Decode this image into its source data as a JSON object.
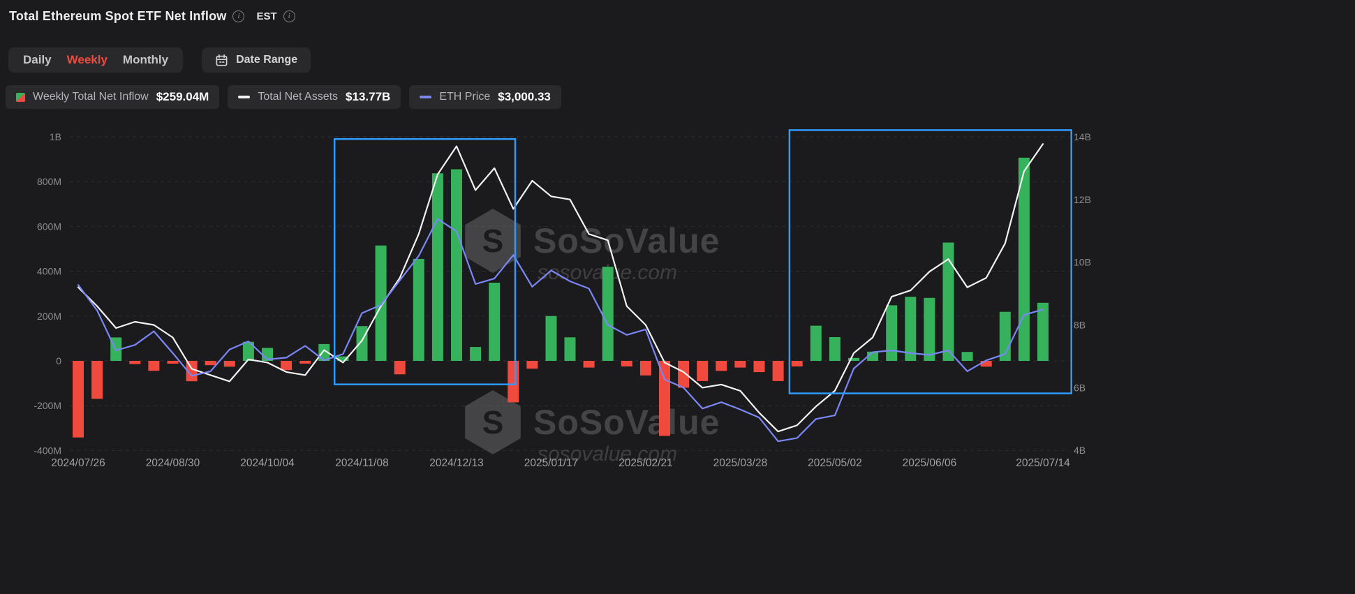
{
  "header": {
    "title": "Total Ethereum Spot ETF Net Inflow",
    "timezone_label": "EST"
  },
  "controls": {
    "tabs": [
      "Daily",
      "Weekly",
      "Monthly"
    ],
    "active_tab": "Weekly",
    "date_range_label": "Date Range"
  },
  "legend": {
    "inflow": {
      "label": "Weekly Total Net Inflow",
      "value": "$259.04M"
    },
    "net_assets": {
      "label": "Total Net Assets",
      "value": "$13.77B"
    },
    "eth_price": {
      "label": "ETH Price",
      "value": "$3,000.33"
    }
  },
  "watermark": {
    "brand": "SoSoValue",
    "site": "sosovalue.com"
  },
  "colors": {
    "background": "#1b1b1d",
    "bar_positive": "#35b25b",
    "bar_negative": "#f04a3e",
    "assets_line": "#f2f2f2",
    "eth_line": "#7b87f7",
    "highlight_box": "#2e9bff",
    "active_tab": "#ee4b40",
    "grid": "#2d2d31",
    "axis_text": "#8e8e92"
  },
  "chart_data": {
    "type": "bar+line",
    "title": "Total Ethereum Spot ETF Net Inflow",
    "grid": "dashed-horizontal",
    "x_axis": {
      "num_points": 52,
      "labels": [
        "2024/07/26",
        "2024/08/30",
        "2024/10/04",
        "2024/11/08",
        "2024/12/13",
        "2025/01/17",
        "2025/02/21",
        "2025/03/28",
        "2025/05/02",
        "2025/06/06",
        "2025/07/14"
      ],
      "label_indices": [
        0,
        5,
        10,
        15,
        20,
        25,
        30,
        35,
        40,
        45,
        51
      ]
    },
    "left_axis": {
      "unit": "USD",
      "ticks_m": [
        1000,
        800,
        600,
        400,
        200,
        0,
        -200,
        -400
      ],
      "labels": [
        "1B",
        "800M",
        "600M",
        "400M",
        "200M",
        "0",
        "-200M",
        "-400M"
      ]
    },
    "right_axis": {
      "unit": "USD",
      "ticks_b": [
        14,
        12,
        10,
        8,
        6,
        4
      ],
      "labels": [
        "14B",
        "12B",
        "10B",
        "8B",
        "6B",
        "4B"
      ]
    },
    "series": [
      {
        "name": "Weekly Total Net Inflow",
        "type": "bar",
        "axis": "left",
        "unit": "USD_million",
        "values": [
          -341.8,
          -169.4,
          104.8,
          -14.2,
          -44.5,
          -12.4,
          -91.1,
          -19.3,
          -26.2,
          85,
          58,
          -41,
          -12,
          75,
          20,
          155,
          515,
          -60,
          455,
          837,
          855,
          62,
          349,
          -185,
          -35,
          200,
          105,
          -30,
          420,
          -25,
          -65,
          -335,
          -120,
          -90,
          -45,
          -30,
          -50,
          -90,
          -25,
          157,
          106,
          13,
          41,
          248,
          286,
          281,
          528,
          40,
          -26,
          219,
          907,
          259.04
        ]
      },
      {
        "name": "Total Net Assets",
        "type": "line",
        "axis": "right",
        "unit": "USD_billion",
        "values": [
          9.2,
          8.6,
          7.9,
          8.1,
          8.0,
          7.6,
          6.6,
          6.4,
          6.2,
          6.9,
          6.8,
          6.5,
          6.4,
          7.2,
          6.8,
          7.5,
          8.6,
          9.5,
          10.9,
          12.8,
          13.7,
          12.3,
          13.0,
          11.7,
          12.6,
          12.1,
          12.0,
          10.9,
          10.7,
          8.6,
          8.0,
          6.8,
          6.5,
          6.0,
          6.1,
          5.9,
          5.2,
          4.6,
          4.8,
          5.4,
          5.9,
          7.1,
          7.6,
          8.9,
          9.1,
          9.7,
          10.1,
          9.2,
          9.5,
          10.6,
          12.9,
          13.77
        ]
      },
      {
        "name": "ETH Price",
        "type": "line",
        "axis": "hidden",
        "unit": "USD",
        "range": [
          1450,
          4900
        ],
        "values": [
          3270,
          2990,
          2550,
          2610,
          2760,
          2520,
          2270,
          2320,
          2560,
          2650,
          2450,
          2470,
          2600,
          2440,
          2510,
          2960,
          3050,
          3320,
          3590,
          3997,
          3860,
          3280,
          3340,
          3600,
          3250,
          3430,
          3310,
          3230,
          2830,
          2720,
          2780,
          2230,
          2140,
          1910,
          1980,
          1900,
          1810,
          1550,
          1585,
          1795,
          1835,
          2350,
          2530,
          2550,
          2520,
          2500,
          2550,
          2320,
          2440,
          2510,
          2940,
          3000.33
        ]
      }
    ],
    "highlight_boxes": [
      {
        "from_index": 13.55,
        "to_index": 23.1,
        "top_m": 990,
        "bottom_m": -105
      },
      {
        "from_index": 37.6,
        "to_index": 52.5,
        "top_m": 1030,
        "bottom_m": -145
      }
    ],
    "legend_position": "top-left"
  }
}
